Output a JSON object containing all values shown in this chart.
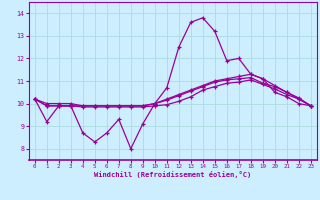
{
  "xlabel": "Windchill (Refroidissement éolien,°C)",
  "x_values": [
    0,
    1,
    2,
    3,
    4,
    5,
    6,
    7,
    8,
    9,
    10,
    11,
    12,
    13,
    14,
    15,
    16,
    17,
    18,
    19,
    20,
    21,
    22,
    23
  ],
  "line1": [
    10.2,
    9.2,
    9.9,
    9.9,
    8.7,
    8.3,
    8.7,
    9.3,
    8.0,
    9.1,
    10.0,
    10.7,
    12.5,
    13.6,
    13.8,
    13.2,
    11.9,
    12.0,
    11.3,
    11.1,
    10.5,
    10.3,
    10.0,
    9.9
  ],
  "line2": [
    10.2,
    9.9,
    9.9,
    9.9,
    9.9,
    9.9,
    9.9,
    9.9,
    9.9,
    9.9,
    10.0,
    10.2,
    10.4,
    10.6,
    10.8,
    11.0,
    11.1,
    11.2,
    11.3,
    11.1,
    10.8,
    10.5,
    10.2,
    9.9
  ],
  "line3": [
    10.2,
    10.0,
    10.0,
    10.0,
    9.9,
    9.9,
    9.9,
    9.9,
    9.9,
    9.9,
    10.0,
    10.15,
    10.35,
    10.55,
    10.75,
    10.95,
    11.05,
    11.1,
    11.15,
    10.9,
    10.75,
    10.5,
    10.25,
    9.9
  ],
  "line4": [
    10.2,
    9.9,
    9.9,
    9.9,
    9.85,
    9.85,
    9.85,
    9.85,
    9.85,
    9.85,
    9.9,
    9.95,
    10.1,
    10.3,
    10.6,
    10.75,
    10.9,
    10.95,
    11.05,
    10.85,
    10.65,
    10.4,
    10.2,
    9.9
  ],
  "line_color": "#990099",
  "bg_color": "#cceeff",
  "plot_bg": "#cceeff",
  "ylim": [
    7.5,
    14.5
  ],
  "xlim": [
    -0.5,
    23.5
  ],
  "yticks": [
    8,
    9,
    10,
    11,
    12,
    13,
    14
  ],
  "xticks": [
    0,
    1,
    2,
    3,
    4,
    5,
    6,
    7,
    8,
    9,
    10,
    11,
    12,
    13,
    14,
    15,
    16,
    17,
    18,
    19,
    20,
    21,
    22,
    23
  ],
  "grid_color": "#aadddd",
  "spine_color": "#990099",
  "tick_color": "#990099",
  "xlabel_color": "#990099"
}
